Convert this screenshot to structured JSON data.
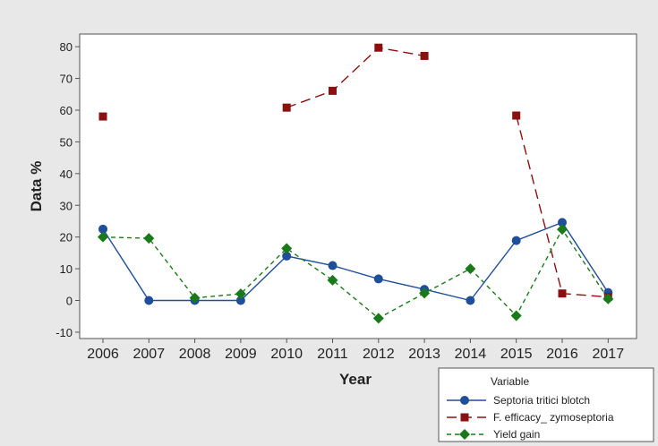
{
  "chart_data": {
    "type": "line",
    "title": "",
    "xlabel": "Year",
    "ylabel": "Data %",
    "categories": [
      "2006",
      "2007",
      "2008",
      "2009",
      "2010",
      "2011",
      "2012",
      "2013",
      "2014",
      "2015",
      "2016",
      "2017"
    ],
    "ylim": [
      -12,
      84
    ],
    "yticks": [
      -10,
      0,
      10,
      20,
      30,
      40,
      50,
      60,
      70,
      80
    ],
    "grid": false,
    "legend_title": "Variable",
    "legend_position": "bottom-right (below plot)",
    "colors": {
      "outer_background": "#e8e8e8",
      "plot_background": "#ffffff"
    },
    "series": [
      {
        "name": "Septoria tritici blotch",
        "color": "#1f4e9a",
        "marker": "circle",
        "line_style": "solid",
        "values": [
          22.5,
          0,
          0,
          0,
          14,
          11,
          6.8,
          3.5,
          0,
          18.9,
          24.6,
          2.5
        ]
      },
      {
        "name": "F. efficacy_ zymoseptoria",
        "color": "#8b1010",
        "marker": "square",
        "line_style": "long-dash",
        "values": [
          58,
          null,
          null,
          null,
          60.8,
          66.1,
          79.7,
          77.1,
          null,
          58.3,
          2.2,
          1.1
        ]
      },
      {
        "name": "Yield gain",
        "color": "#1a7a1a",
        "marker": "diamond",
        "line_style": "short-dash",
        "values": [
          20,
          19.6,
          0.8,
          2.1,
          16.4,
          6.4,
          -5.6,
          2.3,
          10,
          -4.8,
          22.4,
          0.5
        ]
      }
    ]
  }
}
